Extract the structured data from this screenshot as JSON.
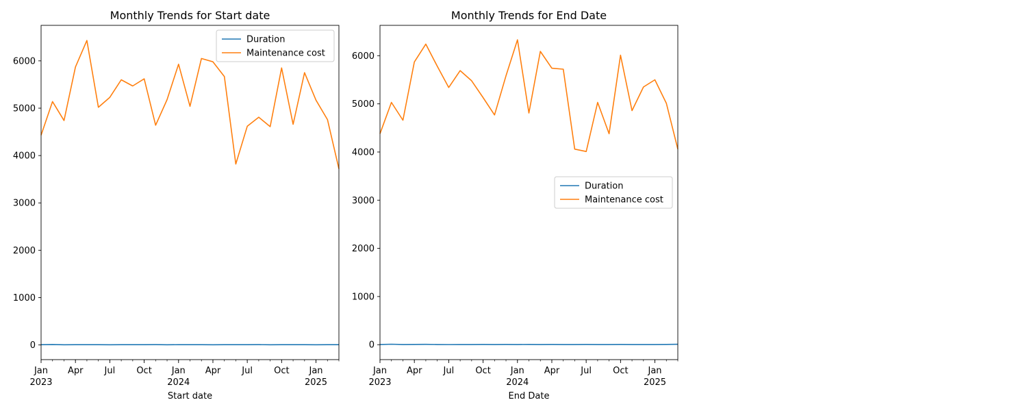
{
  "chart_data": [
    {
      "type": "line",
      "title": "Monthly Trends for Start date",
      "xlabel": "Start date",
      "ylabel": "",
      "x_range": [
        "2023-01",
        "2025-03"
      ],
      "ylim": [
        -310,
        6750
      ],
      "grid": false,
      "legend_position": "upper right",
      "x_tick_labels": [
        {
          "month": "2023-01",
          "label": "Jan",
          "sublabel": "2023"
        },
        {
          "month": "2023-04",
          "label": "Apr"
        },
        {
          "month": "2023-07",
          "label": "Jul"
        },
        {
          "month": "2023-10",
          "label": "Oct"
        },
        {
          "month": "2024-01",
          "label": "Jan",
          "sublabel": "2024"
        },
        {
          "month": "2024-04",
          "label": "Apr"
        },
        {
          "month": "2024-07",
          "label": "Jul"
        },
        {
          "month": "2024-10",
          "label": "Oct"
        },
        {
          "month": "2025-01",
          "label": "Jan",
          "sublabel": "2025"
        }
      ],
      "y_ticks": [
        0,
        1000,
        2000,
        3000,
        4000,
        5000,
        6000
      ],
      "x": [
        "2023-01",
        "2023-02",
        "2023-03",
        "2023-04",
        "2023-05",
        "2023-06",
        "2023-07",
        "2023-08",
        "2023-09",
        "2023-10",
        "2023-11",
        "2023-12",
        "2024-01",
        "2024-02",
        "2024-03",
        "2024-04",
        "2024-05",
        "2024-06",
        "2024-07",
        "2024-08",
        "2024-09",
        "2024-10",
        "2024-11",
        "2024-12",
        "2025-01",
        "2025-02",
        "2025-03"
      ],
      "series": [
        {
          "name": "Duration",
          "color": "#1f77b4",
          "values": [
            5,
            10,
            4,
            5,
            6,
            5,
            4,
            6,
            5,
            5,
            7,
            4,
            5,
            6,
            5,
            4,
            5,
            6,
            5,
            7,
            4,
            5,
            6,
            5,
            4,
            6,
            5
          ]
        },
        {
          "name": "Maintenance cost",
          "color": "#ff7f0e",
          "values": [
            4430,
            5140,
            4740,
            5870,
            6430,
            5020,
            5230,
            5600,
            5470,
            5620,
            4640,
            5180,
            5930,
            5040,
            6050,
            5980,
            5670,
            3820,
            4620,
            4810,
            4610,
            5850,
            4660,
            5750,
            5170,
            4760,
            3720
          ]
        }
      ]
    },
    {
      "type": "line",
      "title": "Monthly Trends for End Date",
      "xlabel": "End Date",
      "ylabel": "",
      "x_range": [
        "2023-01",
        "2025-03"
      ],
      "ylim": [
        -310,
        6630
      ],
      "grid": false,
      "legend_position": "center right",
      "x_tick_labels": [
        {
          "month": "2023-01",
          "label": "Jan",
          "sublabel": "2023"
        },
        {
          "month": "2023-04",
          "label": "Apr"
        },
        {
          "month": "2023-07",
          "label": "Jul"
        },
        {
          "month": "2023-10",
          "label": "Oct"
        },
        {
          "month": "2024-01",
          "label": "Jan",
          "sublabel": "2024"
        },
        {
          "month": "2024-04",
          "label": "Apr"
        },
        {
          "month": "2024-07",
          "label": "Jul"
        },
        {
          "month": "2024-10",
          "label": "Oct"
        },
        {
          "month": "2025-01",
          "label": "Jan",
          "sublabel": "2025"
        }
      ],
      "y_ticks": [
        0,
        1000,
        2000,
        3000,
        4000,
        5000,
        6000
      ],
      "x": [
        "2023-01",
        "2023-02",
        "2023-03",
        "2023-04",
        "2023-05",
        "2023-06",
        "2023-07",
        "2023-08",
        "2023-09",
        "2023-10",
        "2023-11",
        "2023-12",
        "2024-01",
        "2024-02",
        "2024-03",
        "2024-04",
        "2024-05",
        "2024-06",
        "2024-07",
        "2024-08",
        "2024-09",
        "2024-10",
        "2024-11",
        "2024-12",
        "2025-01",
        "2025-02",
        "2025-03"
      ],
      "series": [
        {
          "name": "Duration",
          "color": "#1f77b4",
          "values": [
            5,
            10,
            5,
            6,
            7,
            5,
            3,
            5,
            4,
            6,
            5,
            6,
            5,
            6,
            5,
            6,
            5,
            4,
            6,
            5,
            4,
            6,
            5,
            4,
            5,
            6,
            9
          ]
        },
        {
          "name": "Maintenance cost",
          "color": "#ff7f0e",
          "values": [
            4380,
            5030,
            4660,
            5870,
            6240,
            5780,
            5340,
            5690,
            5480,
            5130,
            4770,
            5580,
            6330,
            4810,
            6090,
            5740,
            5720,
            4060,
            4010,
            5030,
            4380,
            6010,
            4860,
            5350,
            5500,
            5010,
            4060
          ]
        }
      ]
    }
  ]
}
